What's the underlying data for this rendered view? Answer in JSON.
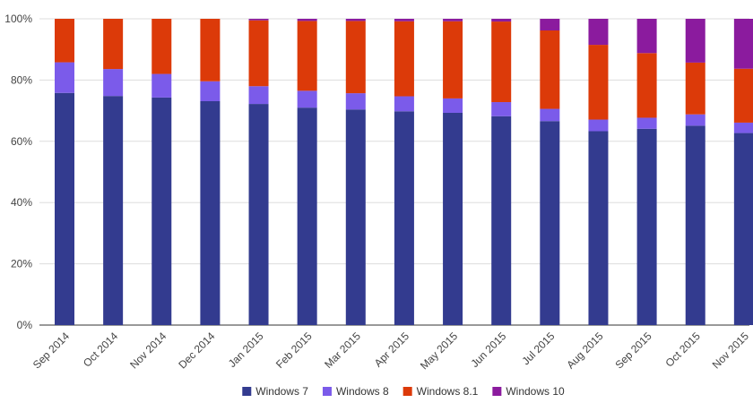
{
  "chart_data": {
    "type": "bar",
    "stacked": true,
    "percent": true,
    "title": "",
    "xlabel": "",
    "ylabel": "",
    "ylim": [
      0,
      100
    ],
    "yticks": [
      "0%",
      "20%",
      "40%",
      "60%",
      "80%",
      "100%"
    ],
    "grid": true,
    "legend_position": "bottom",
    "categories": [
      "Sep 2014",
      "Oct 2014",
      "Nov 2014",
      "Dec 2014",
      "Jan 2015",
      "Feb 2015",
      "Mar 2015",
      "Apr 2015",
      "May 2015",
      "Jun 2015",
      "Jul 2015",
      "Aug 2015",
      "Sep 2015",
      "Oct 2015",
      "Nov 2015"
    ],
    "series": [
      {
        "name": "Windows 7",
        "color": "#333b8f",
        "values": [
          75.8,
          74.8,
          74.3,
          73.1,
          72.2,
          71.0,
          70.4,
          69.8,
          69.3,
          68.2,
          66.6,
          63.3,
          64.1,
          65.1,
          62.7
        ]
      },
      {
        "name": "Windows 8",
        "color": "#7b5bea",
        "values": [
          10.0,
          8.8,
          7.7,
          6.5,
          5.8,
          5.5,
          5.3,
          4.9,
          4.7,
          4.6,
          4.0,
          3.8,
          3.6,
          3.7,
          3.4
        ]
      },
      {
        "name": "Windows 8.1",
        "color": "#dc3a09",
        "values": [
          14.2,
          16.4,
          18.0,
          20.4,
          21.5,
          22.8,
          23.6,
          24.5,
          25.2,
          26.3,
          25.6,
          24.4,
          21.1,
          16.9,
          17.6
        ]
      },
      {
        "name": "Windows 10",
        "color": "#8b1b9e",
        "values": [
          0.0,
          0.0,
          0.0,
          0.0,
          0.5,
          0.7,
          0.7,
          0.8,
          0.8,
          0.9,
          3.8,
          8.5,
          11.2,
          14.3,
          16.3
        ]
      }
    ]
  }
}
